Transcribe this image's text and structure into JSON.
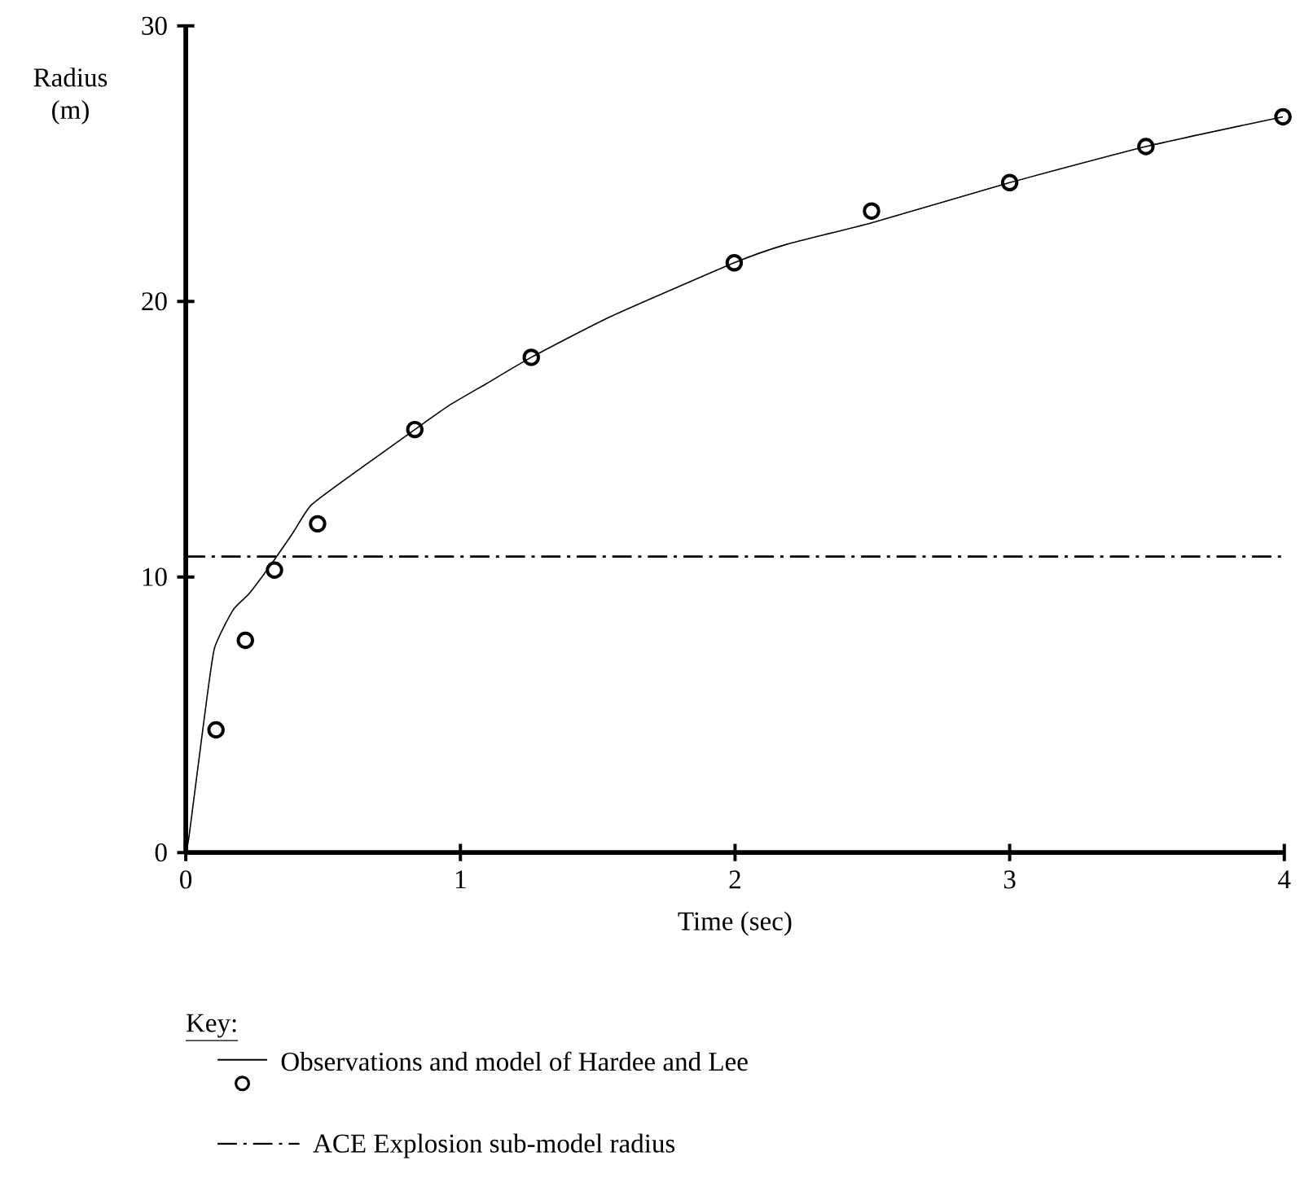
{
  "chart_data": {
    "type": "scatter",
    "xlabel": "Time (sec)",
    "ylabel": "Radius (m)",
    "legend_title": "Key:",
    "legend": "bottom",
    "xlim": [
      0,
      4
    ],
    "ylim": [
      0,
      30
    ],
    "xticks": [
      0,
      1,
      2,
      3,
      4
    ],
    "yticks": [
      0,
      10,
      20,
      30
    ],
    "grid": false,
    "series": [
      {
        "type": "line",
        "color": "#000000",
        "line_style": "solid",
        "marker": "none",
        "x": [
          0,
          0.012,
          0.065,
          0.104,
          0.172,
          0.231,
          0.31,
          0.39,
          0.456,
          0.603,
          0.834,
          0.955,
          1.092,
          1.258,
          1.543,
          1.997,
          2.188,
          2.497,
          3.0,
          3.496,
          3.995
        ],
        "values": [
          0,
          0.6,
          4.7,
          7.4,
          8.8,
          9.4,
          10.45,
          11.6,
          12.6,
          13.7,
          15.35,
          16.2,
          17.0,
          17.97,
          19.43,
          21.4,
          22.07,
          22.85,
          24.31,
          25.62,
          26.7
        ]
      },
      {
        "name": "Observations and model of Hardee and Lee",
        "color": "#000000",
        "marker": "circle",
        "x": [
          0.11,
          0.217,
          0.323,
          0.48,
          0.834,
          1.258,
          1.997,
          2.497,
          3.0,
          3.496,
          3.995
        ],
        "values": [
          4.45,
          7.7,
          10.25,
          11.93,
          15.35,
          17.97,
          21.4,
          23.28,
          24.31,
          25.62,
          26.7
        ]
      }
    ],
    "ref_lines": [
      {
        "axis": "y",
        "value": 10.74,
        "label": "ACE Explosion sub-model radius",
        "color": "#000000",
        "line_style": "dashdot"
      }
    ]
  }
}
